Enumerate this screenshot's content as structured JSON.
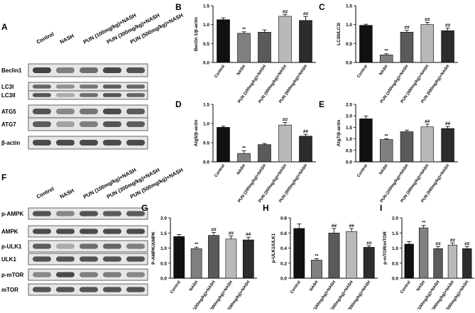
{
  "colors": {
    "black": "#111111",
    "gray": "#808080",
    "mid": "#5a5a5a",
    "light": "#b9b9b9",
    "dark": "#2c2c2c",
    "blot": "#3a3a3a"
  },
  "categories": [
    "Control",
    "NASH",
    "PUN (100mg/kg)+NASH",
    "PUN (300mg/kg)+NASH",
    "PUN (500mg/kg)+NASH"
  ],
  "blots": [
    {
      "letter": "A",
      "columns": [
        "Control",
        "NASH",
        "PUN (100mg/kg)+NASH",
        "PUN (300mg/kg)+NASH",
        "PUN (500mg/kg)+NASH"
      ],
      "rows": [
        {
          "label": "Beclin1",
          "intensity": [
            0.95,
            0.6,
            0.7,
            0.92,
            0.85
          ]
        },
        {
          "label": "LC3I",
          "intensity": [
            0.75,
            0.5,
            0.65,
            0.8,
            0.75
          ]
        },
        {
          "label": "LC3II",
          "intensity": [
            0.85,
            0.35,
            0.7,
            0.85,
            0.75
          ]
        },
        {
          "label": "ATG5",
          "intensity": [
            0.85,
            0.55,
            0.65,
            0.9,
            0.8
          ]
        },
        {
          "label": "ATG7",
          "intensity": [
            0.8,
            0.4,
            0.6,
            0.85,
            0.8
          ]
        },
        {
          "label": "β-actin",
          "intensity": [
            0.9,
            0.9,
            0.9,
            0.9,
            0.9
          ]
        }
      ]
    },
    {
      "letter": "F",
      "columns": [
        "Control",
        "NASH",
        "PUN (100mg/kg)+NASH",
        "PUN (300mg/kg)+NASH",
        "PUN (500mg/kg)+NASH"
      ],
      "rows": [
        {
          "label": "p-AMPK",
          "intensity": [
            0.85,
            0.55,
            0.85,
            0.8,
            0.8
          ]
        },
        {
          "label": "AMPK",
          "intensity": [
            0.9,
            0.9,
            0.9,
            0.9,
            0.9
          ]
        },
        {
          "label": "p-ULK1",
          "intensity": [
            0.8,
            0.35,
            0.7,
            0.75,
            0.6
          ]
        },
        {
          "label": "ULK1",
          "intensity": [
            0.85,
            0.85,
            0.85,
            0.85,
            0.85
          ]
        },
        {
          "label": "p-mTOR",
          "intensity": [
            0.55,
            0.9,
            0.6,
            0.6,
            0.55
          ]
        },
        {
          "label": "mTOR",
          "intensity": [
            0.85,
            0.85,
            0.85,
            0.85,
            0.85
          ]
        }
      ]
    }
  ],
  "chart_data": [
    {
      "letter": "B",
      "type": "bar",
      "ylabel": "Beclin 1/β-actin",
      "ylim": [
        0,
        1.5
      ],
      "yticks": [
        "0.0",
        "0.5",
        "1.0",
        "1.5"
      ],
      "categories": [
        "Control",
        "NASH",
        "PUN (100mg/kg)+NASH",
        "PUN (300mg/kg)+NASH",
        "PUN (500mg/kg)+NASH"
      ],
      "values": [
        1.13,
        0.77,
        0.8,
        1.22,
        1.11
      ],
      "errors": [
        0.05,
        0.04,
        0.06,
        0.05,
        0.1
      ],
      "annotations": [
        "",
        "**",
        "",
        "##",
        "##"
      ]
    },
    {
      "letter": "C",
      "type": "bar",
      "ylabel": "LC3II/LC3I",
      "ylim": [
        0,
        1.5
      ],
      "yticks": [
        "0.0",
        "0.5",
        "1.0",
        "1.5"
      ],
      "categories": [
        "Control",
        "NASH",
        "PUN (100mg/kg)+NASH",
        "PUN (300mg/kg)+NASH",
        "PUN (500mg/kg)+NASH"
      ],
      "values": [
        0.98,
        0.2,
        0.8,
        1.0,
        0.84
      ],
      "errors": [
        0.03,
        0.03,
        0.05,
        0.06,
        0.07
      ],
      "annotations": [
        "",
        "**",
        "##",
        "##",
        "##"
      ]
    },
    {
      "letter": "D",
      "type": "bar",
      "ylabel": "Atg5/β-actin",
      "ylim": [
        0,
        1.5
      ],
      "yticks": [
        "0.0",
        "0.5",
        "1.0",
        "1.5"
      ],
      "categories": [
        "Control",
        "NASH",
        "PUN (100mg/kg)+NASH",
        "PUN (300mg/kg)+NASH",
        "PUN (500mg/kg)+NASH"
      ],
      "values": [
        0.9,
        0.22,
        0.45,
        0.96,
        0.67
      ],
      "errors": [
        0.03,
        0.07,
        0.03,
        0.07,
        0.05
      ],
      "annotations": [
        "",
        "**",
        "",
        "##",
        "##"
      ]
    },
    {
      "letter": "E",
      "type": "bar",
      "ylabel": "Atg7/β-actin",
      "ylim": [
        0,
        2.5
      ],
      "yticks": [
        "0.0",
        "0.5",
        "1.0",
        "1.5",
        "2.0",
        "2.5"
      ],
      "categories": [
        "Control",
        "NASH",
        "PUN (100mg/kg)+NASH",
        "PUN (300mg/kg)+NASH",
        "PUN (500mg/kg)+NASH"
      ],
      "values": [
        1.87,
        0.97,
        1.31,
        1.52,
        1.45
      ],
      "errors": [
        0.12,
        0.03,
        0.07,
        0.12,
        0.09
      ],
      "annotations": [
        "",
        "**",
        "",
        "##",
        "##"
      ]
    },
    {
      "letter": "G",
      "type": "bar",
      "ylabel": "P-AMPK/AMPK",
      "ylim": [
        0,
        2.0
      ],
      "yticks": [
        "0.0",
        "0.5",
        "1.0",
        "1.5",
        "2.0"
      ],
      "categories": [
        "Control",
        "NASH",
        "PUN (100mg/kg)+NASH",
        "PUN (300mg/kg)+NASH",
        "PUN (500mg/kg)+NASH"
      ],
      "values": [
        1.38,
        0.98,
        1.42,
        1.3,
        1.27
      ],
      "errors": [
        0.07,
        0.05,
        0.1,
        0.1,
        0.09
      ],
      "annotations": [
        "",
        "**",
        "##",
        "##",
        "##"
      ]
    },
    {
      "letter": "H",
      "type": "bar",
      "ylabel": "p-ULK1/ULK1",
      "ylim": [
        0,
        0.8
      ],
      "yticks": [
        "0.0",
        "0.2",
        "0.4",
        "0.6",
        "0.8"
      ],
      "categories": [
        "Control",
        "NASH",
        "PUN (100mg/kg)+NASH",
        "PUN (300mg/kg)+NASH",
        "PUN (500mg/kg)+NASH"
      ],
      "values": [
        0.66,
        0.24,
        0.6,
        0.62,
        0.41
      ],
      "errors": [
        0.06,
        0.02,
        0.06,
        0.04,
        0.02
      ],
      "annotations": [
        "",
        "**",
        "##",
        "##",
        "##"
      ]
    },
    {
      "letter": "I",
      "type": "bar",
      "ylabel": "p-mTOR/mTOR",
      "ylim": [
        0,
        2.0
      ],
      "yticks": [
        "0.0",
        "0.5",
        "1.0",
        "1.5",
        "2.0"
      ],
      "categories": [
        "Control",
        "NASH",
        "PUN (100mg/kg)+NASH",
        "PUN (300mg/kg)+NASH",
        "PUN (500mg/kg)+NASH"
      ],
      "values": [
        1.13,
        1.67,
        0.98,
        1.1,
        0.98
      ],
      "errors": [
        0.08,
        0.08,
        0.07,
        0.07,
        0.07
      ],
      "annotations": [
        "",
        "**",
        "##",
        "##",
        "##"
      ]
    }
  ]
}
